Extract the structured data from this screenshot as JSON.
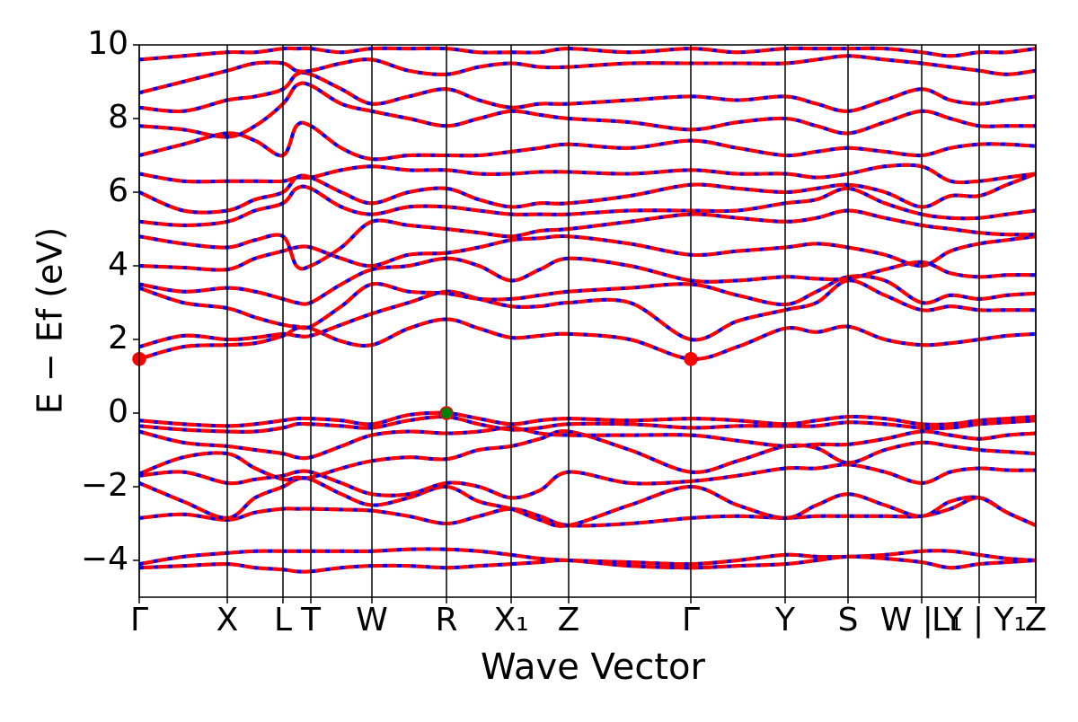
{
  "chart_data": {
    "type": "band_structure",
    "xlabel": "Wave Vector",
    "ylabel": "E − Ef (eV)",
    "xlim": [
      0,
      9.98
    ],
    "ylim": [
      -5,
      10
    ],
    "yticks": [
      {
        "value": -4,
        "label": "−4"
      },
      {
        "value": -2,
        "label": "−2"
      },
      0,
      2,
      4,
      6,
      8,
      10
    ],
    "xticks": [
      {
        "value": 0,
        "label": "Γ"
      },
      {
        "value": 0.98,
        "label": "X"
      },
      {
        "value": 1.6,
        "label": "L"
      },
      {
        "value": 1.91,
        "label": "T"
      },
      {
        "value": 2.59,
        "label": "W"
      },
      {
        "value": 3.42,
        "label": "R"
      },
      {
        "value": 4.14,
        "label": "X₁"
      },
      {
        "value": 4.78,
        "label": "Z"
      },
      {
        "value": 6.14,
        "label": "Γ"
      },
      {
        "value": 7.19,
        "label": "Y"
      },
      {
        "value": 7.89,
        "label": "S"
      },
      {
        "value": 8.71,
        "label": "W | Y"
      },
      {
        "value": 9.35,
        "label": "L₁ | Y₁"
      },
      {
        "value": 9.98,
        "label": "Z"
      }
    ],
    "line_color": "#ff0000",
    "dash_color": "#0000ff",
    "x": [
      0,
      0.49,
      0.98,
      1.29,
      1.6,
      1.75,
      1.91,
      2.25,
      2.59,
      3.0,
      3.42,
      3.78,
      4.14,
      4.46,
      4.78,
      5.46,
      6.14,
      6.66,
      7.19,
      7.54,
      7.89,
      8.3,
      8.71,
      9.03,
      9.35,
      9.66,
      9.98
    ],
    "series": [
      {
        "values": [
          -4.2,
          -4.15,
          -4.1,
          -4.2,
          -4.25,
          -4.3,
          -4.3,
          -4.2,
          -4.15,
          -4.15,
          -4.2,
          -4.15,
          -4.1,
          -4.05,
          -4.0,
          -4.15,
          -4.2,
          -4.15,
          -4.1,
          -4.0,
          -3.9,
          -3.95,
          -4.05,
          -4.2,
          -4.1,
          -4.05,
          -4.0
        ]
      },
      {
        "values": [
          -4.1,
          -3.9,
          -3.8,
          -3.75,
          -3.75,
          -3.75,
          -3.75,
          -3.75,
          -3.75,
          -3.7,
          -3.7,
          -3.75,
          -3.85,
          -3.95,
          -4.0,
          -4.05,
          -4.1,
          -4.0,
          -3.85,
          -3.9,
          -3.9,
          -3.85,
          -3.75,
          -3.75,
          -3.85,
          -3.95,
          -4.0
        ]
      },
      {
        "values": [
          -2.85,
          -2.75,
          -2.9,
          -2.7,
          -2.6,
          -2.6,
          -2.6,
          -2.62,
          -2.65,
          -2.8,
          -3.0,
          -2.8,
          -2.6,
          -2.8,
          -3.05,
          -3.0,
          -2.85,
          -2.8,
          -2.85,
          -2.8,
          -2.8,
          -2.8,
          -2.8,
          -2.6,
          -2.3,
          -2.7,
          -3.05
        ]
      },
      {
        "values": [
          -1.9,
          -2.4,
          -2.85,
          -2.3,
          -2.0,
          -1.8,
          -1.8,
          -2.2,
          -2.5,
          -2.3,
          -2.0,
          -2.4,
          -2.6,
          -2.9,
          -3.05,
          -2.5,
          -2.0,
          -2.5,
          -2.85,
          -2.5,
          -2.2,
          -2.5,
          -2.8,
          -2.4,
          -2.3,
          -2.7,
          -3.05
        ]
      },
      {
        "values": [
          -1.7,
          -1.6,
          -1.9,
          -1.8,
          -1.7,
          -1.6,
          -1.6,
          -1.9,
          -2.2,
          -2.2,
          -1.9,
          -2.0,
          -2.3,
          -2.1,
          -1.6,
          -1.9,
          -1.85,
          -1.7,
          -1.5,
          -1.5,
          -1.4,
          -1.6,
          -1.9,
          -1.6,
          -1.5,
          -1.55,
          -1.55
        ]
      },
      {
        "values": [
          -1.65,
          -1.2,
          -1.1,
          -1.5,
          -1.8,
          -1.75,
          -1.75,
          -1.5,
          -1.3,
          -1.2,
          -1.25,
          -1.0,
          -0.9,
          -0.7,
          -0.5,
          -1.0,
          -1.6,
          -1.3,
          -0.9,
          -0.95,
          -1.35,
          -1.0,
          -0.8,
          -0.9,
          -1.0,
          -1.05,
          -1.1
        ]
      },
      {
        "values": [
          -0.5,
          -0.8,
          -0.9,
          -1.0,
          -1.1,
          -1.2,
          -1.2,
          -0.9,
          -0.6,
          -0.5,
          -0.55,
          -0.5,
          -0.4,
          -0.55,
          -0.6,
          -0.6,
          -0.6,
          -0.75,
          -0.9,
          -0.85,
          -0.85,
          -0.7,
          -0.5,
          -0.6,
          -0.7,
          -0.6,
          -0.55
        ]
      },
      {
        "values": [
          -0.35,
          -0.45,
          -0.5,
          -0.5,
          -0.4,
          -0.3,
          -0.3,
          -0.35,
          -0.4,
          -0.2,
          -0.1,
          -0.3,
          -0.45,
          -0.4,
          -0.3,
          -0.3,
          -0.4,
          -0.35,
          -0.35,
          -0.35,
          -0.25,
          -0.3,
          -0.4,
          -0.4,
          -0.3,
          -0.25,
          -0.2
        ]
      },
      {
        "values": [
          -0.2,
          -0.3,
          -0.35,
          -0.3,
          -0.2,
          -0.15,
          -0.15,
          -0.2,
          -0.3,
          -0.05,
          0.0,
          -0.15,
          -0.3,
          -0.2,
          -0.15,
          -0.2,
          -0.15,
          -0.2,
          -0.3,
          -0.2,
          -0.1,
          -0.15,
          -0.3,
          -0.3,
          -0.2,
          -0.15,
          -0.1
        ]
      },
      {
        "values": [
          1.47,
          1.8,
          1.85,
          1.9,
          2.1,
          2.3,
          2.3,
          1.95,
          1.85,
          2.3,
          2.55,
          2.3,
          2.05,
          2.1,
          2.15,
          2.0,
          1.47,
          1.8,
          2.3,
          2.2,
          2.35,
          2.0,
          1.85,
          1.9,
          2.0,
          2.1,
          2.15
        ]
      },
      {
        "values": [
          1.8,
          2.1,
          2.0,
          2.05,
          2.15,
          2.1,
          2.1,
          2.4,
          2.7,
          3.0,
          3.3,
          3.1,
          2.9,
          2.9,
          3.0,
          3.0,
          2.0,
          2.5,
          2.8,
          3.0,
          3.6,
          3.2,
          2.8,
          2.9,
          2.8,
          2.8,
          2.8
        ]
      },
      {
        "values": [
          3.4,
          3.0,
          2.85,
          2.6,
          2.4,
          2.35,
          2.35,
          2.9,
          3.5,
          3.3,
          3.25,
          3.1,
          3.1,
          3.2,
          3.3,
          3.4,
          3.5,
          3.2,
          2.95,
          3.3,
          3.7,
          3.6,
          3.0,
          3.2,
          3.1,
          3.2,
          3.25
        ]
      },
      {
        "values": [
          3.5,
          3.3,
          3.4,
          3.3,
          3.1,
          3.0,
          3.0,
          3.5,
          3.9,
          4.0,
          4.2,
          4.0,
          3.6,
          3.9,
          4.2,
          4.0,
          3.6,
          3.6,
          3.7,
          3.65,
          3.65,
          3.9,
          4.1,
          3.8,
          3.7,
          3.75,
          3.75
        ]
      },
      {
        "values": [
          4.0,
          3.95,
          3.9,
          4.2,
          4.4,
          4.5,
          4.5,
          4.2,
          4.0,
          4.3,
          4.35,
          4.5,
          4.7,
          4.75,
          4.8,
          4.6,
          4.3,
          4.4,
          4.5,
          4.6,
          4.5,
          4.3,
          4.0,
          4.4,
          4.6,
          4.7,
          4.8
        ]
      },
      {
        "values": [
          4.8,
          4.6,
          4.5,
          4.7,
          4.8,
          4.0,
          4.0,
          4.5,
          5.2,
          5.1,
          5.0,
          4.9,
          4.8,
          4.95,
          5.0,
          5.2,
          5.4,
          5.3,
          5.2,
          5.3,
          5.5,
          5.3,
          5.1,
          5.0,
          4.9,
          4.85,
          4.85
        ]
      },
      {
        "values": [
          5.2,
          5.1,
          5.2,
          5.5,
          5.7,
          6.1,
          6.1,
          5.6,
          5.4,
          5.6,
          5.6,
          5.5,
          5.4,
          5.4,
          5.4,
          5.5,
          5.5,
          5.5,
          5.7,
          5.8,
          6.1,
          5.7,
          5.4,
          5.3,
          5.3,
          5.4,
          5.5
        ]
      },
      {
        "values": [
          6.0,
          5.5,
          5.5,
          5.8,
          6.0,
          6.4,
          6.4,
          6.0,
          5.7,
          6.0,
          6.1,
          5.8,
          5.6,
          5.7,
          5.7,
          5.9,
          6.2,
          6.1,
          6.0,
          6.1,
          6.2,
          6.0,
          5.6,
          5.9,
          5.9,
          6.2,
          6.5
        ]
      },
      {
        "values": [
          6.5,
          6.3,
          6.3,
          6.3,
          6.3,
          6.4,
          6.4,
          6.6,
          6.7,
          6.6,
          6.6,
          6.5,
          6.5,
          6.55,
          6.55,
          6.5,
          6.6,
          6.5,
          6.5,
          6.4,
          6.5,
          6.7,
          6.7,
          6.3,
          6.3,
          6.4,
          6.5
        ]
      },
      {
        "values": [
          7.0,
          7.3,
          7.6,
          7.4,
          7.0,
          7.8,
          7.8,
          7.2,
          6.9,
          7.0,
          7.0,
          7.0,
          7.1,
          7.2,
          7.3,
          7.2,
          7.4,
          7.2,
          7.0,
          7.1,
          7.2,
          7.1,
          7.0,
          7.2,
          7.3,
          7.3,
          7.25
        ]
      },
      {
        "values": [
          7.8,
          7.7,
          7.5,
          7.8,
          8.4,
          8.9,
          8.9,
          8.4,
          8.2,
          8.0,
          7.8,
          8.0,
          8.2,
          8.1,
          8.0,
          7.9,
          7.7,
          7.9,
          8.0,
          7.8,
          7.6,
          7.9,
          8.2,
          8.0,
          7.8,
          7.8,
          7.8
        ]
      },
      {
        "values": [
          8.3,
          8.2,
          8.5,
          8.6,
          8.8,
          9.2,
          9.2,
          8.8,
          8.4,
          8.6,
          8.8,
          8.5,
          8.3,
          8.4,
          8.4,
          8.5,
          8.6,
          8.5,
          8.6,
          8.4,
          8.2,
          8.5,
          8.8,
          8.5,
          8.4,
          8.5,
          8.6
        ]
      },
      {
        "values": [
          8.7,
          9.0,
          9.3,
          9.5,
          9.5,
          9.3,
          9.3,
          9.5,
          9.6,
          9.3,
          9.2,
          9.4,
          9.5,
          9.4,
          9.4,
          9.5,
          9.5,
          9.5,
          9.5,
          9.6,
          9.7,
          9.6,
          9.5,
          9.4,
          9.3,
          9.2,
          9.3
        ]
      },
      {
        "values": [
          9.6,
          9.7,
          9.8,
          9.8,
          9.9,
          9.9,
          9.9,
          9.8,
          9.9,
          9.9,
          9.9,
          9.8,
          9.8,
          9.8,
          9.9,
          9.8,
          9.9,
          9.8,
          9.9,
          9.9,
          9.9,
          9.9,
          9.8,
          9.7,
          9.8,
          9.8,
          9.9
        ]
      }
    ],
    "markers": [
      {
        "x": 0,
        "y": 1.47,
        "color": "#ff0000"
      },
      {
        "x": 6.14,
        "y": 1.47,
        "color": "#ff0000"
      },
      {
        "x": 3.42,
        "y": 0.0,
        "color": "#008000"
      }
    ]
  }
}
